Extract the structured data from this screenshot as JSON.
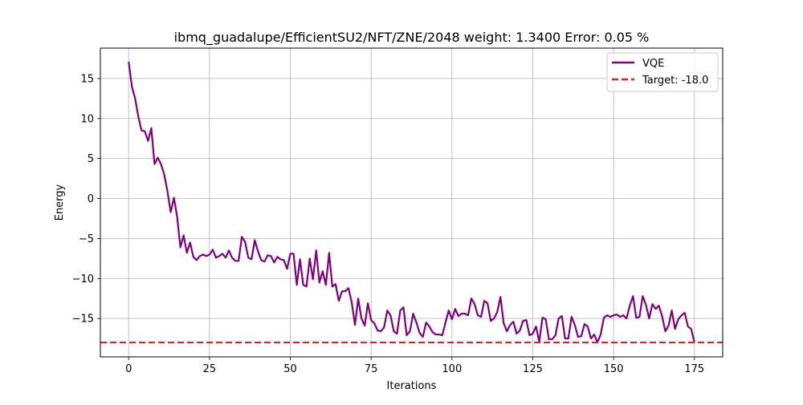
{
  "chart_data": {
    "type": "line",
    "title": "ibmq_guadalupe/EfficientSU2/NFT/ZNE/2048 weight: 1.3400 Error: 0.05 %",
    "xlabel": "Iterations",
    "ylabel": "Energy",
    "xlim": [
      -8.75,
      183.75
    ],
    "ylim": [
      -19.8,
      18.8
    ],
    "xticks": [
      0,
      25,
      50,
      75,
      100,
      125,
      150,
      175
    ],
    "yticks": [
      -15,
      -10,
      -5,
      0,
      5,
      10,
      15
    ],
    "grid": true,
    "legend_position": "top-right",
    "series": [
      {
        "name": "VQE",
        "color": "#800080",
        "style": "solid",
        "x": [
          0,
          1,
          2,
          3,
          4,
          5,
          6,
          7,
          8,
          9,
          10,
          11,
          12,
          13,
          14,
          15,
          16,
          17,
          18,
          19,
          20,
          21,
          22,
          23,
          24,
          25,
          26,
          27,
          28,
          29,
          30,
          31,
          32,
          33,
          34,
          35,
          36,
          37,
          38,
          39,
          40,
          41,
          42,
          43,
          44,
          45,
          46,
          47,
          48,
          49,
          50,
          51,
          52,
          53,
          54,
          55,
          56,
          57,
          58,
          59,
          60,
          61,
          62,
          63,
          64,
          65,
          66,
          67,
          68,
          69,
          70,
          71,
          72,
          73,
          74,
          75,
          76,
          77,
          78,
          79,
          80,
          81,
          82,
          83,
          84,
          85,
          86,
          87,
          88,
          89,
          90,
          91,
          92,
          93,
          94,
          95,
          96,
          97,
          98,
          99,
          100,
          101,
          102,
          103,
          104,
          105,
          106,
          107,
          108,
          109,
          110,
          111,
          112,
          113,
          114,
          115,
          116,
          117,
          118,
          119,
          120,
          121,
          122,
          123,
          124,
          125,
          126,
          127,
          128,
          129,
          130,
          131,
          132,
          133,
          134,
          135,
          136,
          137,
          138,
          139,
          140,
          141,
          142,
          143,
          144,
          145,
          146,
          147,
          148,
          149,
          150,
          151,
          152,
          153,
          154,
          155,
          156,
          157,
          158,
          159,
          160,
          161,
          162,
          163,
          164,
          165,
          166,
          167,
          168,
          169,
          170,
          171,
          172,
          173,
          174,
          175
        ],
        "values": [
          17.1,
          14.0,
          12.5,
          10.2,
          8.5,
          8.4,
          7.2,
          8.8,
          4.3,
          5.1,
          4.3,
          3.0,
          0.9,
          -1.7,
          0.1,
          -2.3,
          -6.1,
          -4.6,
          -6.8,
          -5.5,
          -7.3,
          -7.7,
          -7.2,
          -7.0,
          -7.2,
          -7.0,
          -6.4,
          -7.4,
          -7.2,
          -6.9,
          -7.4,
          -6.5,
          -7.4,
          -7.8,
          -7.8,
          -4.8,
          -5.4,
          -7.4,
          -7.6,
          -5.2,
          -6.6,
          -7.7,
          -7.9,
          -7.1,
          -7.2,
          -8.0,
          -7.3,
          -7.6,
          -7.7,
          -8.8,
          -6.9,
          -6.9,
          -10.8,
          -7.6,
          -10.8,
          -11.0,
          -7.5,
          -10.1,
          -6.5,
          -10.5,
          -9.1,
          -10.8,
          -6.8,
          -11.0,
          -10.7,
          -12.8,
          -11.6,
          -11.6,
          -11.2,
          -13.0,
          -15.8,
          -12.5,
          -15.0,
          -15.9,
          -13.1,
          -15.2,
          -15.6,
          -16.5,
          -16.6,
          -16.1,
          -14.0,
          -14.6,
          -16.6,
          -16.9,
          -14.0,
          -13.6,
          -17.1,
          -16.6,
          -14.4,
          -15.5,
          -16.8,
          -17.3,
          -15.5,
          -16.0,
          -16.7,
          -17.0,
          -17.0,
          -17.1,
          -15.5,
          -14.0,
          -15.1,
          -13.8,
          -14.7,
          -14.4,
          -14.4,
          -14.6,
          -12.5,
          -13.2,
          -14.6,
          -14.8,
          -12.8,
          -13.1,
          -15.3,
          -15.0,
          -14.2,
          -12.3,
          -15.6,
          -16.6,
          -15.8,
          -15.4,
          -16.9,
          -16.5,
          -15.3,
          -15.2,
          -17.1,
          -16.9,
          -16.0,
          -17.9,
          -14.9,
          -15.1,
          -17.6,
          -17.6,
          -17.1,
          -15.0,
          -14.7,
          -17.5,
          -17.5,
          -14.8,
          -15.8,
          -17.3,
          -17.2,
          -15.7,
          -16.0,
          -17.5,
          -17.0,
          -18.0,
          -17.0,
          -14.9,
          -14.6,
          -14.8,
          -14.6,
          -14.5,
          -14.8,
          -14.6,
          -15.0,
          -13.4,
          -12.2,
          -14.9,
          -14.8,
          -12.2,
          -13.3,
          -15.0,
          -13.2,
          -13.8,
          -13.4,
          -14.7,
          -16.6,
          -15.9,
          -14.0,
          -16.3,
          -15.1,
          -14.6,
          -14.3,
          -16.0,
          -16.3,
          -18.0
        ]
      },
      {
        "name": "Target: -18.0",
        "color": "#d62728",
        "style": "dashed",
        "value": -18.0
      }
    ]
  }
}
